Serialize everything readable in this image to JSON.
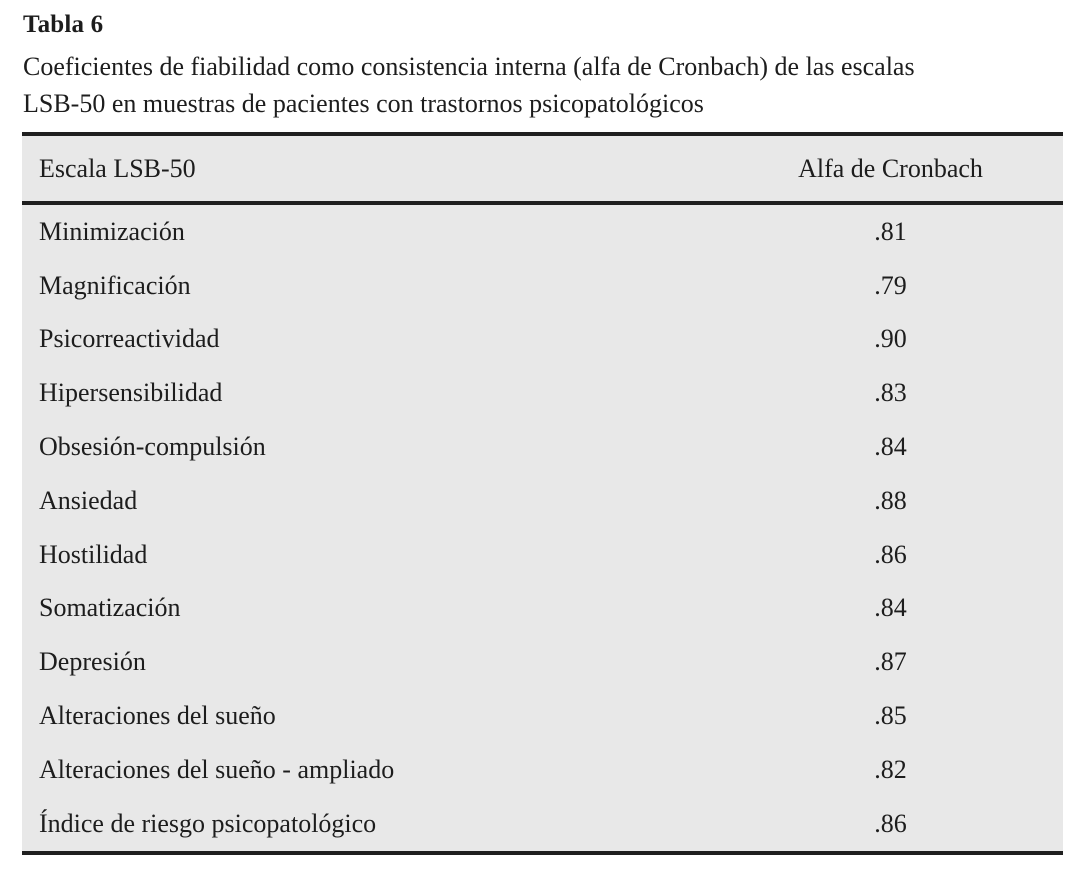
{
  "title": "Tabla 6",
  "caption_lines": [
    "Coeficientes de fiabilidad como consistencia interna (alfa de Cronbach) de las escalas",
    "LSB-50 en muestras de pacientes con trastornos psicopatológicos"
  ],
  "table": {
    "columns": [
      "Escala LSB-50",
      "Alfa de Cronbach"
    ],
    "rows": [
      {
        "escala": "Minimización",
        "alfa": ".81"
      },
      {
        "escala": "Magnificación",
        "alfa": ".79"
      },
      {
        "escala": "Psicorreactividad",
        "alfa": ".90"
      },
      {
        "escala": "Hipersensibilidad",
        "alfa": ".83"
      },
      {
        "escala": "Obsesión-compulsión",
        "alfa": ".84"
      },
      {
        "escala": "Ansiedad",
        "alfa": ".88"
      },
      {
        "escala": "Hostilidad",
        "alfa": ".86"
      },
      {
        "escala": "Somatización",
        "alfa": ".84"
      },
      {
        "escala": "Depresión",
        "alfa": ".87"
      },
      {
        "escala": "Alteraciones del sueño",
        "alfa": ".85"
      },
      {
        "escala": "Alteraciones del sueño - ampliado",
        "alfa": ".82"
      },
      {
        "escala": "Índice de riesgo psicopatológico",
        "alfa": ".86"
      }
    ]
  },
  "colors": {
    "page_background": "#ffffff",
    "table_background": "#e8e8e8",
    "rule": "#1f1f1f",
    "text": "#1d1d1d"
  }
}
